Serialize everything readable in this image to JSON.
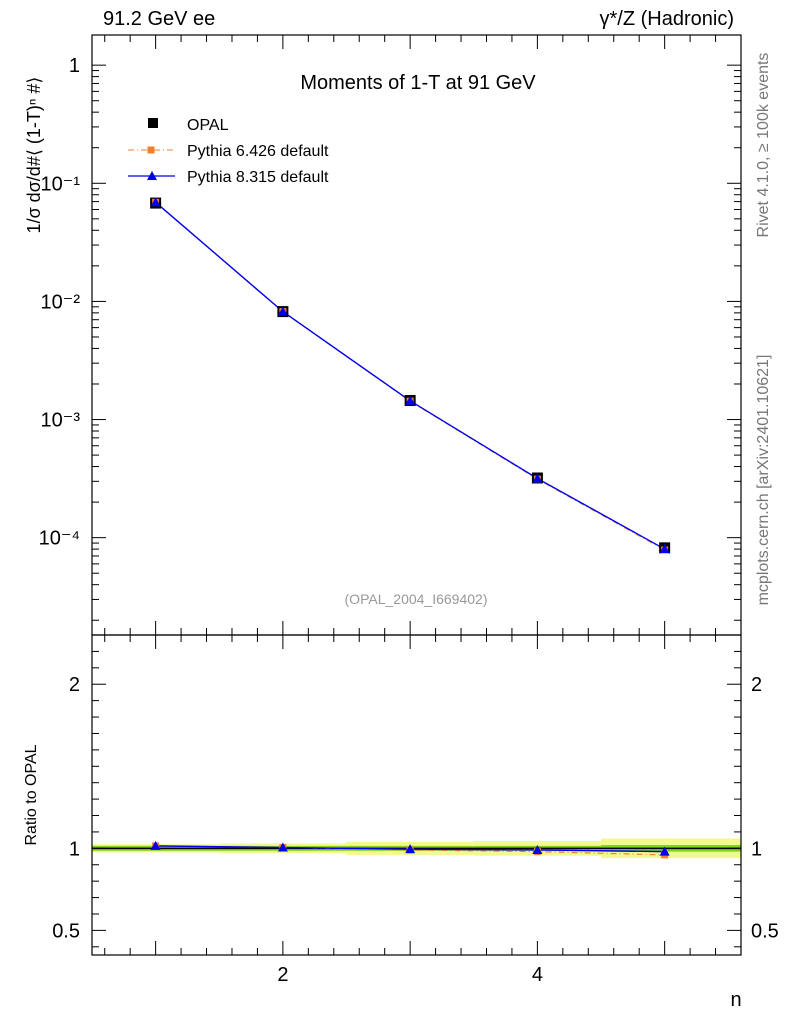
{
  "header": {
    "process_left": "91.2 GeV ee",
    "process_right": "γ*/Z (Hadronic)"
  },
  "side_labels": {
    "rivet": "Rivet 4.1.0, ≥ 100k events",
    "source": "mcplots.cern.ch [arXiv:2401.10621]"
  },
  "colors": {
    "opal": "#000000",
    "pythia6": "#f08030",
    "pythia8": "#0000ee",
    "band_inner": "#7fd320",
    "band_outer": "#f0fa90"
  },
  "chart_data": [
    {
      "type": "line",
      "title": "Moments of 1-T at 91 GeV",
      "ylabel": "1/σ  dσ/d#⟨ (1-T)ⁿ #⟩",
      "xlabel": "",
      "annotation": "(OPAL_2004_I669402)",
      "yscale": "log",
      "xlim": [
        0.5,
        5.6
      ],
      "ylim": [
        1.5e-05,
        1.8
      ],
      "yticks": [
        {
          "v": 1,
          "label": "1"
        },
        {
          "v": 0.1,
          "label": "10⁻¹"
        },
        {
          "v": 0.01,
          "label": "10⁻²"
        },
        {
          "v": 0.001,
          "label": "10⁻³"
        },
        {
          "v": 0.0001,
          "label": "10⁻⁴"
        }
      ],
      "legend_position": "top-left",
      "x": [
        1,
        2,
        3,
        4,
        5
      ],
      "series": [
        {
          "name": "OPAL",
          "marker": "square",
          "values": [
            0.068,
            0.0082,
            0.00145,
            0.00032,
            8.2e-05
          ]
        },
        {
          "name": "Pythia 6.426 default",
          "marker": "square-small",
          "line": "dashdot",
          "values": [
            0.069,
            0.0082,
            0.00143,
            0.000313,
            7.87e-05
          ]
        },
        {
          "name": "Pythia 8.315 default",
          "marker": "triangle",
          "line": "solid",
          "values": [
            0.069,
            0.0082,
            0.00144,
            0.000317,
            8.01e-05
          ]
        }
      ]
    },
    {
      "type": "line",
      "ylabel": "Ratio to OPAL",
      "xlabel": "n",
      "xlim": [
        0.5,
        5.6
      ],
      "ylim": [
        0.35,
        2.3
      ],
      "xticks": [
        2,
        4
      ],
      "yticks": [
        {
          "v": 0.5,
          "label": "0.5"
        },
        {
          "v": 1,
          "label": "1"
        },
        {
          "v": 2,
          "label": "2"
        }
      ],
      "x": [
        1,
        2,
        3,
        4,
        5
      ],
      "band_inner_halfwidth": [
        0.015,
        0.015,
        0.015,
        0.015,
        0.02
      ],
      "band_outer_halfwidth": [
        0.025,
        0.03,
        0.04,
        0.045,
        0.06
      ],
      "series": [
        {
          "name": "Pythia 6.426 default",
          "values": [
            1.015,
            1.005,
            0.99,
            0.98,
            0.96
          ]
        },
        {
          "name": "Pythia 8.315 default",
          "values": [
            1.015,
            1.005,
            0.995,
            0.99,
            0.98
          ]
        }
      ]
    }
  ]
}
